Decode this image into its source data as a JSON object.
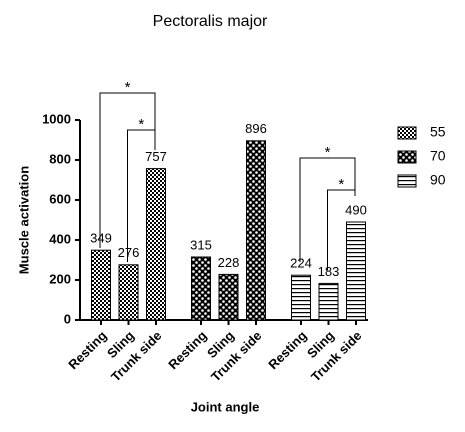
{
  "chart_data": {
    "type": "bar",
    "title": "Pectoralis major",
    "x_label": "Joint angle",
    "y_label": "Muscle activation",
    "categories": [
      "Resting",
      "Sling",
      "Trunk side"
    ],
    "series": [
      {
        "name": "55",
        "color": "#000000",
        "values": [
          349,
          276,
          757
        ]
      },
      {
        "name": "70",
        "color": "#000000",
        "values": [
          315,
          228,
          896
        ]
      },
      {
        "name": "90",
        "color": "#000000",
        "values": [
          224,
          183,
          490
        ]
      }
    ],
    "ylim": [
      0,
      1000
    ],
    "yticks": [
      0,
      200,
      400,
      600,
      800,
      1000
    ],
    "annotations": [
      "*",
      "*",
      "*",
      "*"
    ],
    "legend": "right",
    "grid": false
  }
}
